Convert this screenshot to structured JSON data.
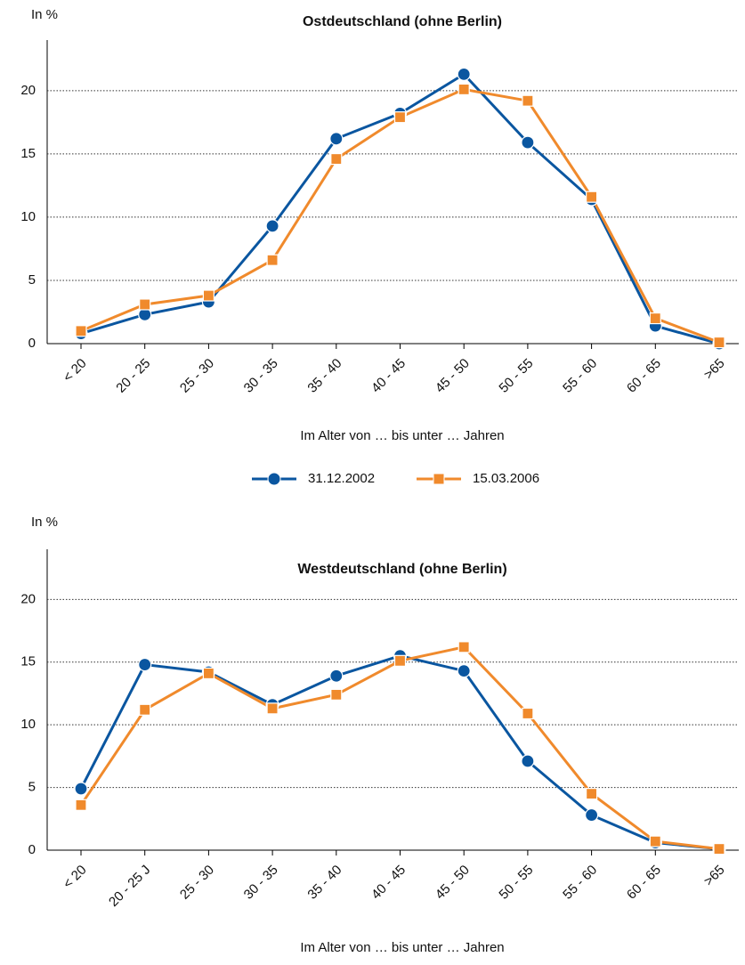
{
  "chart_data": [
    {
      "type": "line",
      "title": "Ostdeutschland (ohne Berlin)",
      "y_label": "In %",
      "x_label": "Im Alter von … bis unter … Jahren",
      "categories": [
        "< 20",
        "20 - 25",
        "25 - 30",
        "30 - 35",
        "35 - 40",
        "40 - 45",
        "45 - 50",
        "50 - 55",
        "55 - 60",
        "60 - 65",
        ">65"
      ],
      "series": [
        {
          "name": "31.12.2002",
          "color": "#0a56a0",
          "marker": "circle",
          "values": [
            0.8,
            2.3,
            3.3,
            9.3,
            16.2,
            18.2,
            21.3,
            15.9,
            11.4,
            1.4,
            0
          ]
        },
        {
          "name": "15.03.2006",
          "color": "#f08a2c",
          "marker": "square",
          "values": [
            1.0,
            3.1,
            3.8,
            6.6,
            14.6,
            17.9,
            20.1,
            19.2,
            11.6,
            2.0,
            0.1
          ]
        }
      ],
      "ylim": [
        0,
        24
      ],
      "yticks": [
        0,
        5,
        10,
        15,
        20
      ],
      "grid": true,
      "legend": "bottom"
    },
    {
      "type": "line",
      "title": "Westdeutschland (ohne Berlin)",
      "y_label": "In %",
      "x_label": "Im Alter von … bis unter … Jahren",
      "categories": [
        "< 20",
        "20 - 25 J",
        "25 - 30",
        "30 - 35",
        "35 - 40",
        "40 - 45",
        "45 - 50",
        "50 - 55",
        "55 - 60",
        "60 - 65",
        ">65"
      ],
      "series": [
        {
          "color": "#0a56a0",
          "marker": "circle",
          "values": [
            4.9,
            14.8,
            14.2,
            11.6,
            13.9,
            15.5,
            14.3,
            7.1,
            2.8,
            0.6,
            0.1
          ]
        },
        {
          "color": "#f08a2c",
          "marker": "square",
          "values": [
            3.6,
            11.2,
            14.1,
            11.3,
            12.4,
            15.1,
            16.2,
            10.9,
            4.5,
            0.7,
            0.1
          ]
        }
      ],
      "ylim": [
        0,
        24
      ],
      "yticks": [
        0,
        5,
        10,
        15,
        20
      ],
      "grid": true
    }
  ]
}
